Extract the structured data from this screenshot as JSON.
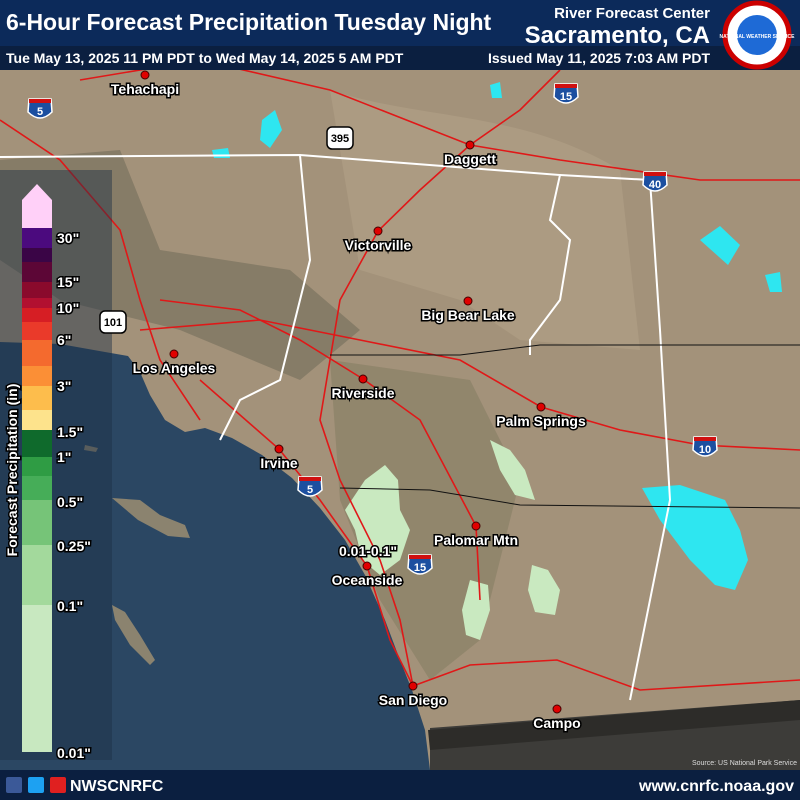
{
  "header": {
    "title": "6-Hour Forecast Precipitation Tuesday Night",
    "valid_period": "Tue May 13, 2025 11 PM PDT to Wed May 14, 2025 5 AM PDT",
    "office_line1": "River Forecast Center",
    "office_line2": "Sacramento, CA",
    "issued": "Issued May 11, 2025 7:03 AM PDT",
    "logo_text": "NATIONAL WEATHER SERVICE"
  },
  "legend": {
    "title": "Forecast Precipitation (in)",
    "labels": [
      "30\"",
      "15\"",
      "10\"",
      "6\"",
      "3\"",
      "1.5\"",
      "1\"",
      "0.5\"",
      "0.25\"",
      "0.1\"",
      "0.01\""
    ]
  },
  "map": {
    "cities": [
      "Tehachapi",
      "Daggett",
      "Victorville",
      "Big Bear Lake",
      "Los Angeles",
      "Riverside",
      "Palm Springs",
      "Irvine",
      "Palomar Mtn",
      "Oceanside",
      "San Diego",
      "Campo"
    ],
    "highways": [
      "5",
      "15",
      "395",
      "40",
      "101",
      "10",
      "5",
      "15"
    ],
    "annotation": "0.01-0.1\"",
    "source": "Source: US National Park Service"
  },
  "footer": {
    "social": "NWSCNRFC",
    "website": "www.cnrfc.noaa.gov"
  }
}
